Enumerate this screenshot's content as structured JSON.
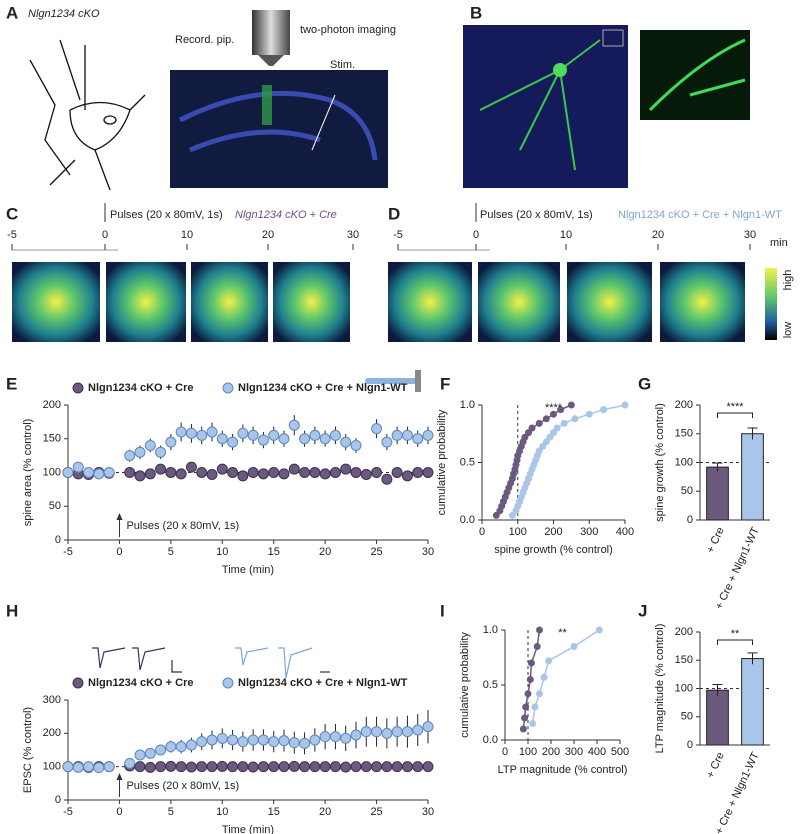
{
  "figure": {
    "letters": [
      "A",
      "B",
      "C",
      "D",
      "E",
      "F",
      "G",
      "H",
      "I",
      "J"
    ],
    "a": {
      "genotype": "Nlgn1234 cKO",
      "pipette": "Record. pip.",
      "imaging": "two-photon imaging",
      "stim": "Stim."
    },
    "c": {
      "ticks": [
        -5,
        0,
        10,
        20,
        30
      ],
      "pulses": "Pulses (20 x 80mV, 1s)",
      "condition": "Nlgn1234 cKO + Cre"
    },
    "d": {
      "ticks": [
        -5,
        0,
        10,
        20,
        30
      ],
      "pulses": "Pulses (20 x 80mV, 1s)",
      "condition": "Nlgn1234 cKO + Cre + Nlgn1-WT",
      "unit": "min"
    },
    "colorbar": {
      "high": "high",
      "low": "low"
    }
  },
  "chart_data": [
    {
      "type": "scatter",
      "xlabel": "Time (min)",
      "ylabel": "spine area (% control)",
      "annotation": "Pulses (20 x 80mV, 1s)",
      "x": [
        -5,
        -4,
        -3,
        -2,
        -1,
        0,
        1,
        2,
        3,
        4,
        5,
        6,
        7,
        8,
        9,
        10,
        11,
        12,
        13,
        14,
        15,
        16,
        17,
        18,
        19,
        20,
        21,
        22,
        23,
        24,
        25,
        26,
        27,
        28,
        29,
        30
      ],
      "xlim": [
        -5,
        30
      ],
      "xticks": [
        -5,
        0,
        5,
        10,
        15,
        20,
        25,
        30
      ],
      "ylim": [
        0,
        200
      ],
      "yticks": [
        0,
        50,
        100,
        150,
        200
      ],
      "refline": 100,
      "series": [
        {
          "name": "Nlgn1234 cKO + Cre",
          "color": "#6b5a7e",
          "values": [
            100,
            98,
            97,
            100,
            99,
            null,
            100,
            95,
            98,
            105,
            100,
            98,
            108,
            100,
            97,
            105,
            100,
            95,
            100,
            98,
            100,
            98,
            105,
            100,
            100,
            98,
            100,
            105,
            100,
            97,
            100,
            90,
            100,
            95,
            100,
            100
          ],
          "errors": [
            5,
            5,
            5,
            5,
            5,
            null,
            6,
            6,
            6,
            7,
            6,
            6,
            7,
            6,
            6,
            7,
            6,
            6,
            6,
            6,
            6,
            6,
            7,
            6,
            6,
            6,
            6,
            7,
            6,
            6,
            6,
            6,
            6,
            6,
            6,
            6
          ]
        },
        {
          "name": "Nlgn1234 cKO + Cre + Nlgn1-WT",
          "color": "#a9c6ea",
          "values": [
            100,
            108,
            100,
            98,
            100,
            null,
            125,
            130,
            140,
            130,
            145,
            160,
            158,
            155,
            160,
            150,
            145,
            158,
            155,
            148,
            155,
            150,
            170,
            150,
            155,
            150,
            155,
            145,
            140,
            null,
            165,
            145,
            155,
            155,
            150,
            155
          ],
          "errors": [
            6,
            6,
            6,
            6,
            6,
            null,
            9,
            10,
            10,
            10,
            12,
            14,
            14,
            13,
            14,
            12,
            12,
            13,
            13,
            12,
            13,
            12,
            15,
            12,
            13,
            12,
            13,
            12,
            11,
            null,
            14,
            12,
            13,
            13,
            12,
            13
          ]
        }
      ]
    },
    {
      "type": "line",
      "xlabel": "spine growth (% control)",
      "ylabel": "cumulative probability",
      "annotation": "****",
      "xlim": [
        0,
        400
      ],
      "xticks": [
        0,
        100,
        200,
        300,
        400
      ],
      "ylim": [
        0,
        1
      ],
      "yticks": [
        {
          "value": 0,
          "label": "0.0"
        },
        {
          "value": 0.5,
          "label": "0.5"
        },
        {
          "value": 1,
          "label": "1.0"
        }
      ],
      "vline": 100,
      "series": [
        {
          "color": "#6b5a7e",
          "x": [
            40,
            50,
            55,
            60,
            65,
            70,
            75,
            80,
            85,
            88,
            92,
            95,
            98,
            100,
            105,
            110,
            115,
            120,
            130,
            140,
            160,
            180,
            200,
            220,
            250
          ],
          "values": [
            0.04,
            0.08,
            0.12,
            0.16,
            0.2,
            0.24,
            0.28,
            0.32,
            0.36,
            0.4,
            0.44,
            0.48,
            0.52,
            0.56,
            0.6,
            0.64,
            0.68,
            0.72,
            0.76,
            0.8,
            0.84,
            0.88,
            0.92,
            0.96,
            1.0
          ]
        },
        {
          "color": "#a9c6ea",
          "x": [
            85,
            95,
            100,
            105,
            110,
            115,
            120,
            125,
            130,
            135,
            140,
            145,
            150,
            155,
            160,
            170,
            180,
            190,
            200,
            210,
            230,
            260,
            300,
            340,
            400
          ],
          "values": [
            0.04,
            0.08,
            0.12,
            0.16,
            0.2,
            0.24,
            0.28,
            0.32,
            0.36,
            0.4,
            0.44,
            0.48,
            0.52,
            0.56,
            0.6,
            0.64,
            0.68,
            0.72,
            0.76,
            0.8,
            0.84,
            0.88,
            0.92,
            0.96,
            1.0
          ]
        }
      ]
    },
    {
      "type": "bar",
      "ylabel": "spine growth (% control)",
      "annotation": "****",
      "categories": [
        "+ Cre",
        "+ Cre + Nlgn1-WT"
      ],
      "values": [
        92,
        150
      ],
      "errors": [
        7,
        10
      ],
      "colors": [
        "#6b5a7e",
        "#a9c6ea"
      ],
      "ylim": [
        0,
        200
      ],
      "yticks": [
        0,
        50,
        100,
        150,
        200
      ],
      "refline": 100
    },
    {
      "type": "scatter",
      "xlabel": "Time (min)",
      "ylabel": "EPSC (% control)",
      "annotation": "Pulses (20 x 80mV, 1s)",
      "x": [
        -5,
        -4,
        -3,
        -2,
        -1,
        0,
        1,
        2,
        3,
        4,
        5,
        6,
        7,
        8,
        9,
        10,
        11,
        12,
        13,
        14,
        15,
        16,
        17,
        18,
        19,
        20,
        21,
        22,
        23,
        24,
        25,
        26,
        27,
        28,
        29,
        30
      ],
      "xlim": [
        -5,
        30
      ],
      "xticks": [
        -5,
        0,
        5,
        10,
        15,
        20,
        25,
        30
      ],
      "ylim": [
        0,
        300
      ],
      "yticks": [
        0,
        100,
        200,
        300
      ],
      "refline": 100,
      "series": [
        {
          "name": "Nlgn1234 cKO + Cre",
          "color": "#6b5a7e",
          "values": [
            100,
            100,
            98,
            100,
            100,
            null,
            102,
            100,
            98,
            100,
            101,
            100,
            99,
            100,
            100,
            101,
            100,
            100,
            99,
            100,
            100,
            100,
            101,
            100,
            100,
            100,
            100,
            99,
            100,
            100,
            100,
            100,
            100,
            100,
            100,
            100
          ],
          "errors": [
            4,
            4,
            4,
            4,
            4,
            null,
            5,
            5,
            5,
            5,
            5,
            5,
            5,
            5,
            5,
            5,
            5,
            5,
            5,
            5,
            5,
            5,
            5,
            5,
            5,
            5,
            5,
            5,
            5,
            5,
            5,
            5,
            5,
            5,
            5,
            5
          ]
        },
        {
          "name": "Nlgn1234 cKO + Cre + Nlgn1-WT",
          "color": "#a9c6ea",
          "values": [
            100,
            98,
            100,
            97,
            100,
            null,
            110,
            135,
            140,
            150,
            160,
            160,
            165,
            175,
            180,
            185,
            180,
            175,
            180,
            180,
            175,
            178,
            172,
            170,
            180,
            190,
            190,
            185,
            195,
            205,
            205,
            200,
            205,
            205,
            210,
            220
          ],
          "errors": [
            5,
            5,
            5,
            5,
            5,
            null,
            8,
            12,
            14,
            16,
            18,
            20,
            22,
            25,
            28,
            30,
            30,
            30,
            32,
            32,
            32,
            33,
            33,
            33,
            35,
            38,
            38,
            38,
            40,
            45,
            45,
            45,
            45,
            48,
            48,
            50
          ]
        }
      ]
    },
    {
      "type": "line",
      "xlabel": "LTP magnitude (% control)",
      "ylabel": "cumulative probability",
      "annotation": "**",
      "xlim": [
        0,
        500
      ],
      "xticks": [
        0,
        100,
        200,
        300,
        400,
        500
      ],
      "ylim": [
        0,
        1
      ],
      "yticks": [
        {
          "value": 0,
          "label": "0.0"
        },
        {
          "value": 0.5,
          "label": "0.5"
        },
        {
          "value": 1,
          "label": "1.0"
        }
      ],
      "vline": 100,
      "series": [
        {
          "color": "#6b5a7e",
          "x": [
            80,
            85,
            90,
            100,
            110,
            115,
            140,
            150
          ],
          "values": [
            0.1,
            0.2,
            0.3,
            0.42,
            0.55,
            0.7,
            0.85,
            1.0
          ]
        },
        {
          "color": "#a9c6ea",
          "x": [
            120,
            130,
            150,
            170,
            190,
            300,
            410
          ],
          "values": [
            0.15,
            0.3,
            0.42,
            0.57,
            0.72,
            0.85,
            1.0
          ]
        }
      ]
    },
    {
      "type": "bar",
      "ylabel": "LTP magnitude (% control)",
      "annotation": "**",
      "categories": [
        "+ Cre",
        "+ Cre + Nlgn1-WT"
      ],
      "values": [
        97,
        153
      ],
      "errors": [
        10,
        10
      ],
      "colors": [
        "#6b5a7e",
        "#a9c6ea"
      ],
      "ylim": [
        0,
        200
      ],
      "yticks": [
        0,
        50,
        100,
        150,
        200
      ],
      "refline": 100
    }
  ]
}
